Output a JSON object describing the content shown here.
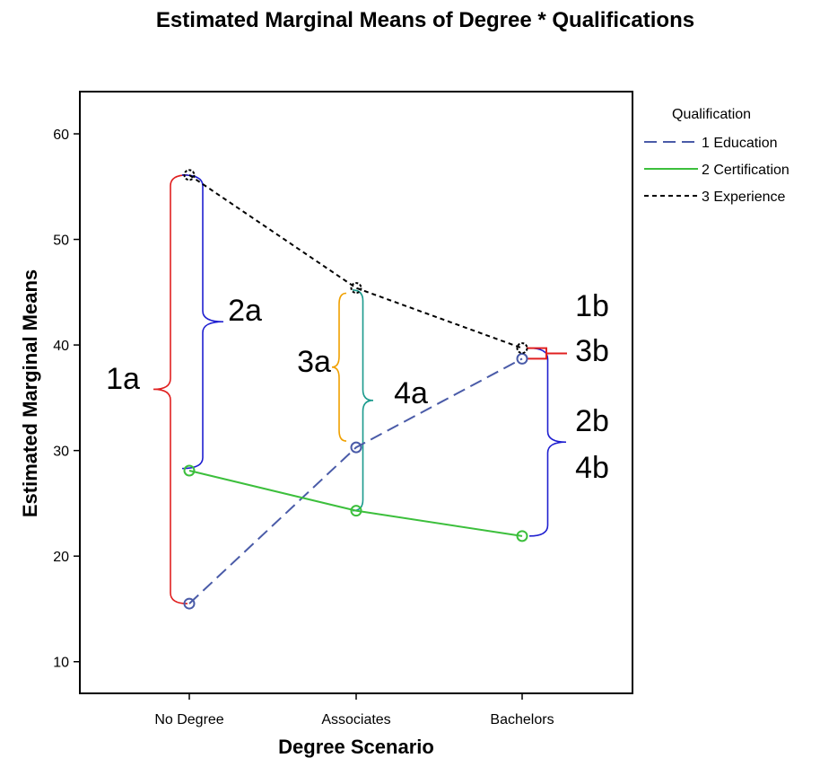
{
  "chart_data": {
    "type": "line",
    "title": "Estimated Marginal Means of Degree * Qualifications",
    "xlabel": "Degree Scenario",
    "ylabel": "Estimated Marginal Means",
    "categories": [
      "No Degree",
      "Associates",
      "Bachelors"
    ],
    "yticks": [
      10,
      20,
      30,
      40,
      50,
      60
    ],
    "ylim": [
      7,
      64
    ],
    "legend": {
      "title": "Qualification",
      "position": "right"
    },
    "series": [
      {
        "name": "1 Education",
        "values": [
          15.5,
          30.3,
          38.7
        ],
        "color": "#4a5ba8",
        "dash": "long-dash"
      },
      {
        "name": "2 Certification",
        "values": [
          28.1,
          24.3,
          21.9
        ],
        "color": "#3cbf3c",
        "dash": "solid"
      },
      {
        "name": "3 Experience",
        "values": [
          56.1,
          45.4,
          39.7
        ],
        "color": "#000000",
        "dash": "short-dash"
      }
    ],
    "annotations": [
      {
        "label": "1a",
        "category": "No Degree",
        "from": 15.5,
        "to": 56.1,
        "color": "#e02020",
        "side": "left"
      },
      {
        "label": "2a",
        "category": "No Degree",
        "from": 28.3,
        "to": 56.1,
        "color": "#1f1fd0",
        "side": "right"
      },
      {
        "label": "3a",
        "category": "Associates",
        "from": 30.9,
        "to": 44.9,
        "color": "#f0a000",
        "side": "left"
      },
      {
        "label": "4a",
        "category": "Associates",
        "from": 24.3,
        "to": 45.2,
        "color": "#1a9a8c",
        "side": "right"
      },
      {
        "label": "1b",
        "category": "Bachelors",
        "from": 38.7,
        "to": 39.7,
        "color": "#e02020",
        "side": "right"
      },
      {
        "label": "3b",
        "category": "Bachelors",
        "from": 38.7,
        "to": 39.7,
        "color": "#e02020",
        "side": "right"
      },
      {
        "label": "2b",
        "category": "Bachelors",
        "from": 21.9,
        "to": 39.7,
        "color": "#1f1fd0",
        "side": "right"
      },
      {
        "label": "4b",
        "category": "Bachelors",
        "from": 21.9,
        "to": 39.7,
        "color": "#1f1fd0",
        "side": "right"
      }
    ]
  }
}
